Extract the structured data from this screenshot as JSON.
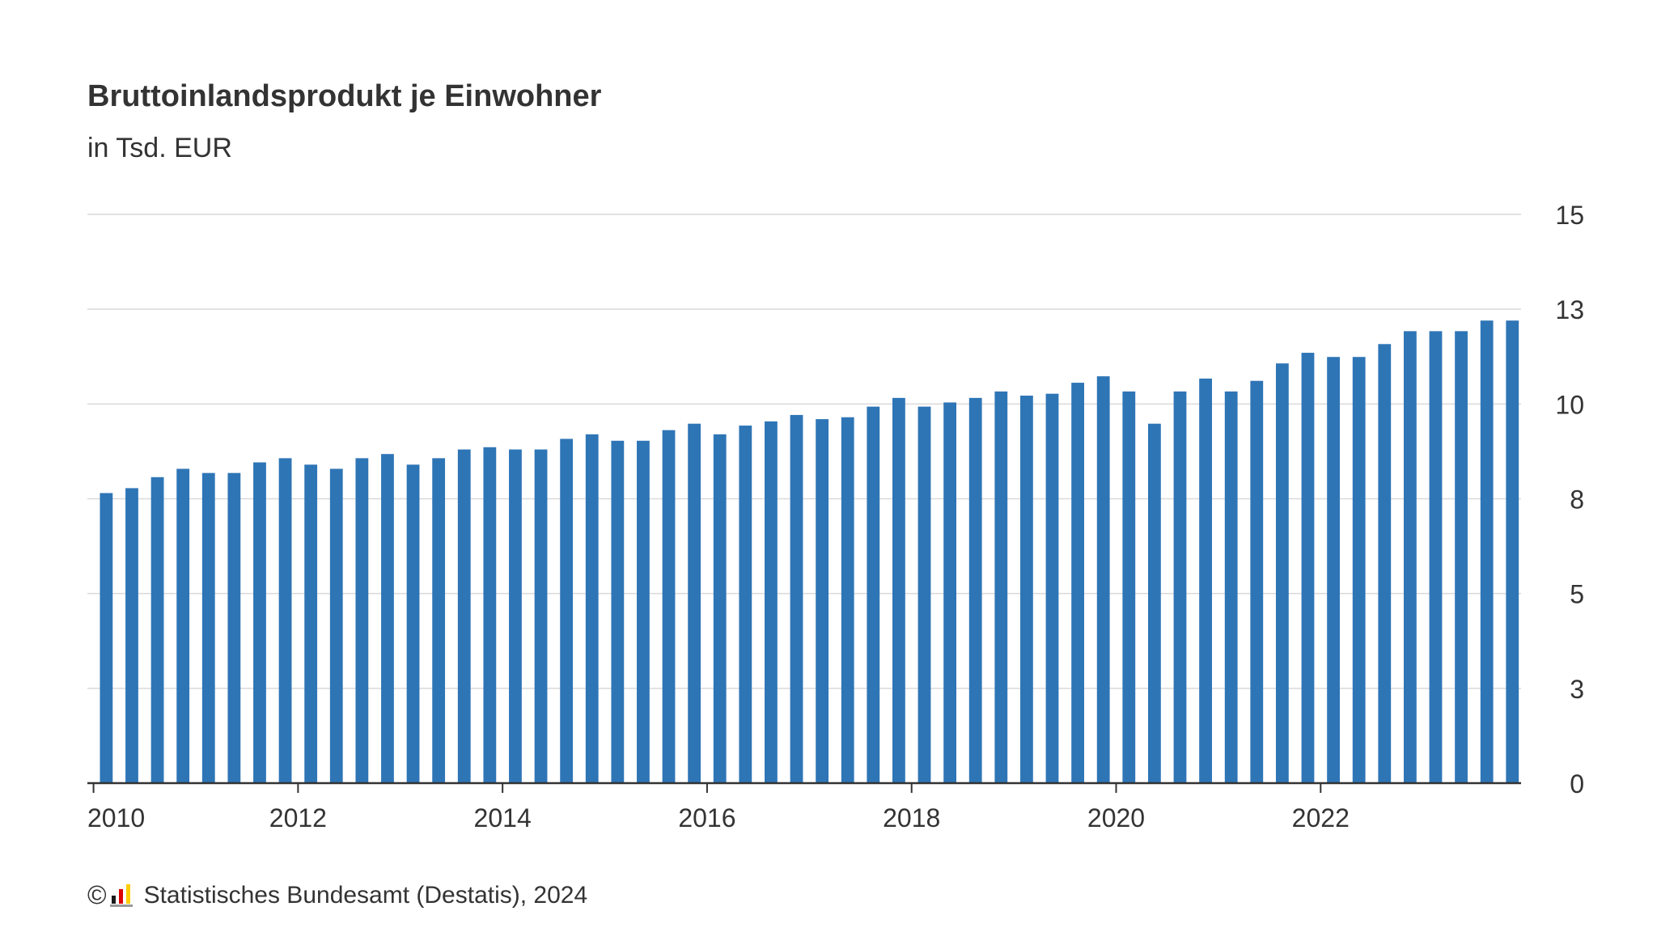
{
  "chart_data": {
    "type": "bar",
    "title": "Bruttoinlandsprodukt je Einwohner",
    "subtitle": "in Tsd. EUR",
    "xlabel": "",
    "ylabel": "",
    "x_start_year": 2010,
    "x_range": [
      2009.94,
      2023.96
    ],
    "x_ticks": [
      "2010",
      "2012",
      "2014",
      "2016",
      "2018",
      "2020",
      "2022"
    ],
    "y_ticks": [
      "0",
      "3",
      "5",
      "8",
      "10",
      "13",
      "15"
    ],
    "ylim": [
      0,
      15
    ],
    "grid": true,
    "legend": "none",
    "color": "#2e75b6",
    "categories": [
      "Q1 2010",
      "Q2 2010",
      "Q3 2010",
      "Q4 2010",
      "Q1 2011",
      "Q2 2011",
      "Q3 2011",
      "Q4 2011",
      "Q1 2012",
      "Q2 2012",
      "Q3 2012",
      "Q4 2012",
      "Q1 2013",
      "Q2 2013",
      "Q3 2013",
      "Q4 2013",
      "Q1 2014",
      "Q2 2014",
      "Q3 2014",
      "Q4 2014",
      "Q1 2015",
      "Q2 2015",
      "Q3 2015",
      "Q4 2015",
      "Q1 2016",
      "Q2 2016",
      "Q3 2016",
      "Q4 2016",
      "Q1 2017",
      "Q2 2017",
      "Q3 2017",
      "Q4 2017",
      "Q1 2018",
      "Q2 2018",
      "Q3 2018",
      "Q4 2018",
      "Q1 2019",
      "Q2 2019",
      "Q3 2019",
      "Q4 2019",
      "Q1 2020",
      "Q2 2020",
      "Q3 2020",
      "Q4 2020",
      "Q1 2021",
      "Q2 2021",
      "Q3 2021",
      "Q4 2021",
      "Q1 2022",
      "Q2 2022",
      "Q3 2022",
      "Q4 2022",
      "Q1 2023",
      "Q2 2023",
      "Q3 2023",
      "Q4 2023"
    ],
    "values": [
      7.65,
      7.78,
      8.07,
      8.29,
      8.18,
      8.18,
      8.46,
      8.57,
      8.4,
      8.29,
      8.57,
      8.68,
      8.4,
      8.57,
      8.8,
      8.86,
      8.8,
      8.8,
      9.08,
      9.2,
      9.03,
      9.03,
      9.31,
      9.48,
      9.2,
      9.43,
      9.54,
      9.71,
      9.6,
      9.65,
      9.93,
      10.16,
      9.93,
      10.04,
      10.16,
      10.33,
      10.22,
      10.27,
      10.56,
      10.73,
      10.33,
      9.48,
      10.33,
      10.67,
      10.33,
      10.61,
      11.07,
      11.35,
      11.24,
      11.24,
      11.58,
      11.92,
      11.92,
      11.92,
      12.2,
      12.2
    ]
  },
  "footer": {
    "copyright": "©",
    "source": "Statistisches Bundesamt (Destatis), 2024"
  }
}
